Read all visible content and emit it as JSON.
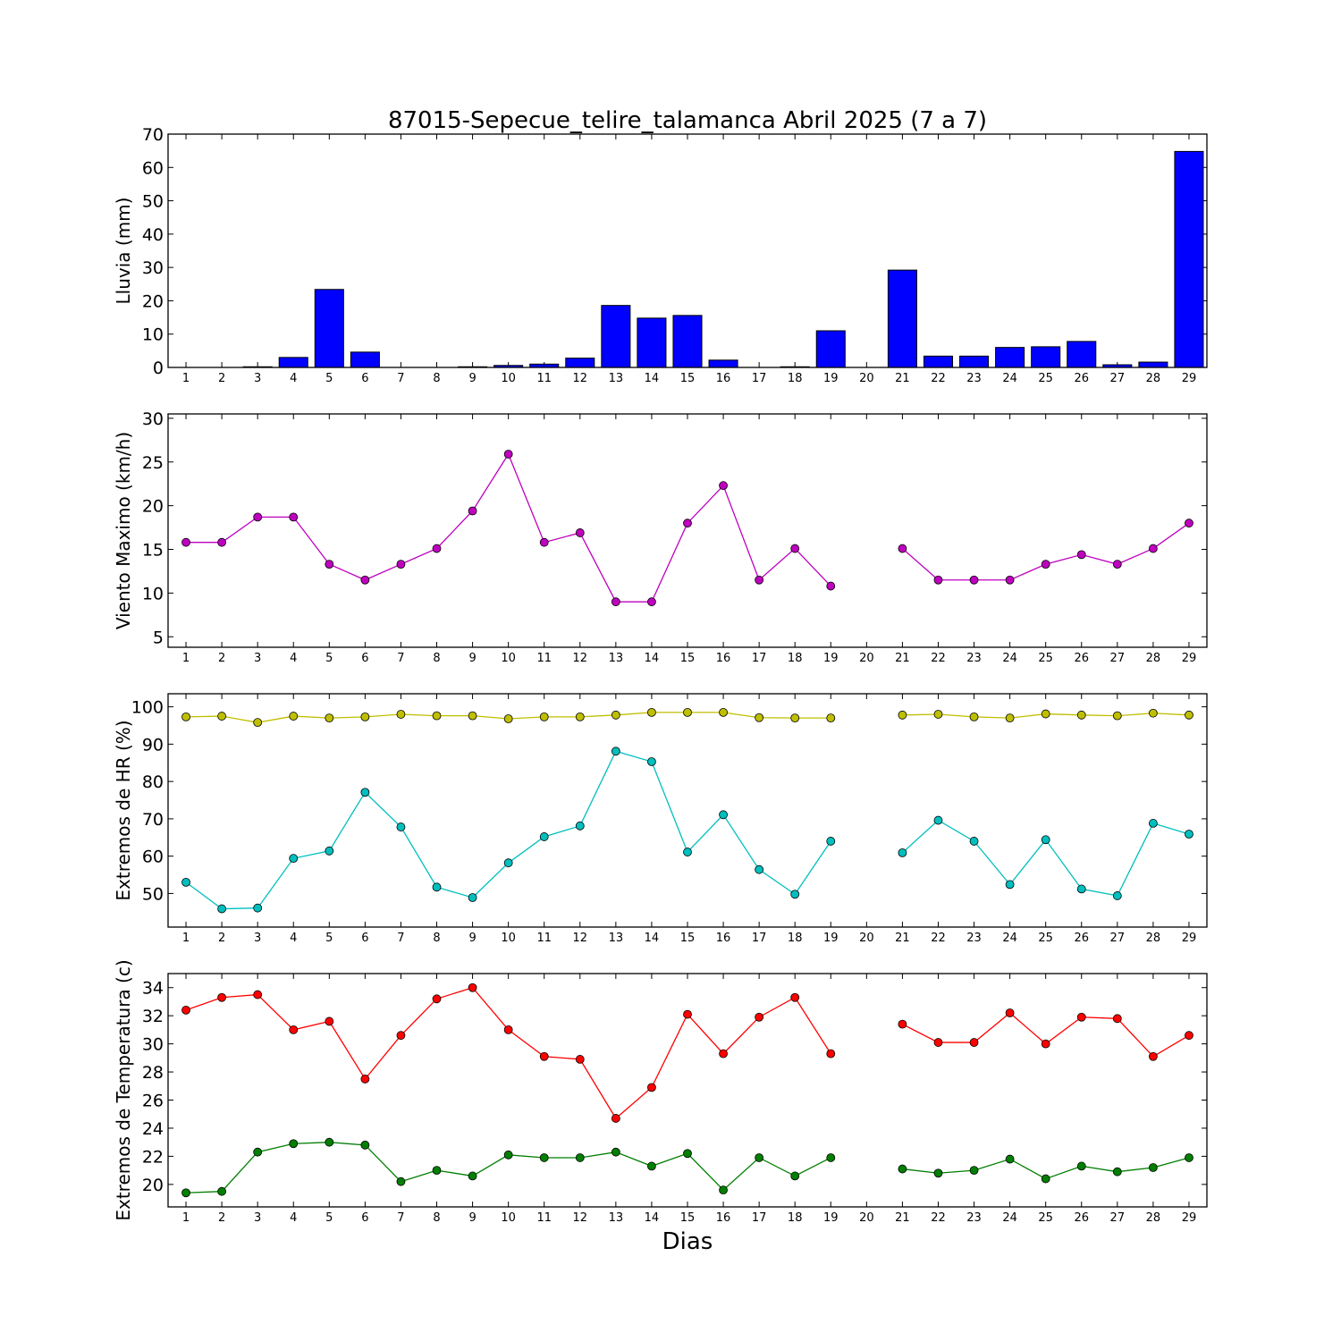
{
  "chart_data": {
    "type": "multi-panel",
    "title": "87015-Sepecue_telire_talamanca Abril 2025  (7 a 7)",
    "xlabel": "Dias",
    "days": [
      1,
      2,
      3,
      4,
      5,
      6,
      7,
      8,
      9,
      10,
      11,
      12,
      13,
      14,
      15,
      16,
      17,
      18,
      19,
      20,
      21,
      22,
      23,
      24,
      25,
      26,
      27,
      28,
      29
    ],
    "panels": [
      {
        "name": "lluvia",
        "type": "bar",
        "ylabel": "Lluvia (mm)",
        "ylim": [
          0,
          70
        ],
        "yticks": [
          0,
          10,
          20,
          30,
          40,
          50,
          60,
          70
        ],
        "series": [
          {
            "color": "#0000ff",
            "values": [
              0,
              0,
              0.2,
              3.0,
              23.4,
              4.6,
              0,
              0,
              0.2,
              0.6,
              1.0,
              2.8,
              18.6,
              14.8,
              15.6,
              2.2,
              0,
              0.2,
              11.0,
              0,
              29.2,
              3.4,
              3.4,
              6.0,
              6.2,
              7.8,
              0.8,
              1.6,
              64.8
            ]
          }
        ]
      },
      {
        "name": "viento",
        "type": "line",
        "ylabel": "Viento Maximo (km/h)",
        "ylim": [
          3.8,
          30.5
        ],
        "yticks": [
          5,
          10,
          15,
          20,
          25,
          30
        ],
        "series": [
          {
            "color": "#bf00bf",
            "values": [
              15.8,
              15.8,
              18.7,
              18.7,
              13.3,
              11.5,
              13.3,
              15.1,
              19.4,
              25.9,
              15.8,
              16.9,
              9.0,
              9.0,
              18.0,
              22.3,
              11.5,
              15.1,
              10.8,
              null,
              15.1,
              11.5,
              11.5,
              11.5,
              13.3,
              14.4,
              13.3,
              15.1,
              18.0
            ]
          }
        ]
      },
      {
        "name": "humedad",
        "type": "line",
        "ylabel": "Extremos de HR (%)",
        "ylim": [
          41,
          103.5
        ],
        "yticks": [
          50,
          60,
          70,
          80,
          90,
          100
        ],
        "series": [
          {
            "color": "#bfbf00",
            "values": [
              97.3,
              97.5,
              95.8,
              97.5,
              97.0,
              97.3,
              98.0,
              97.6,
              97.6,
              96.8,
              97.3,
              97.3,
              97.8,
              98.5,
              98.5,
              98.5,
              97.1,
              97.0,
              97.0,
              null,
              97.8,
              98.0,
              97.3,
              97.0,
              98.1,
              97.8,
              97.6,
              98.3,
              97.8
            ]
          },
          {
            "color": "#00bfbf",
            "values": [
              53.0,
              45.9,
              46.1,
              59.4,
              61.4,
              77.1,
              67.8,
              51.7,
              48.9,
              58.2,
              65.2,
              68.1,
              88.1,
              85.3,
              61.1,
              71.1,
              56.4,
              49.8,
              64.0,
              null,
              60.9,
              69.6,
              64.0,
              52.4,
              64.4,
              51.2,
              49.4,
              68.8,
              65.9
            ]
          }
        ]
      },
      {
        "name": "temperatura",
        "type": "line",
        "ylabel": "Extremos de Temperatura (c)",
        "ylim": [
          18.4,
          35.0
        ],
        "yticks": [
          20,
          22,
          24,
          26,
          28,
          30,
          32,
          34
        ],
        "series": [
          {
            "color": "#ff0000",
            "values": [
              32.4,
              33.3,
              33.5,
              31.0,
              31.6,
              27.5,
              30.6,
              33.2,
              34.0,
              31.0,
              29.1,
              28.9,
              24.7,
              26.9,
              32.1,
              29.3,
              31.9,
              33.3,
              29.3,
              null,
              31.4,
              30.1,
              30.1,
              32.2,
              30.0,
              31.9,
              31.8,
              29.1,
              30.6
            ]
          },
          {
            "color": "#007f00",
            "values": [
              19.4,
              19.5,
              22.3,
              22.9,
              23.0,
              22.8,
              20.2,
              21.0,
              20.6,
              22.1,
              21.9,
              21.9,
              22.3,
              21.3,
              22.2,
              19.6,
              21.9,
              20.6,
              21.9,
              null,
              21.1,
              20.8,
              21.0,
              21.8,
              20.4,
              21.3,
              20.9,
              21.2,
              21.9
            ]
          }
        ]
      }
    ]
  }
}
